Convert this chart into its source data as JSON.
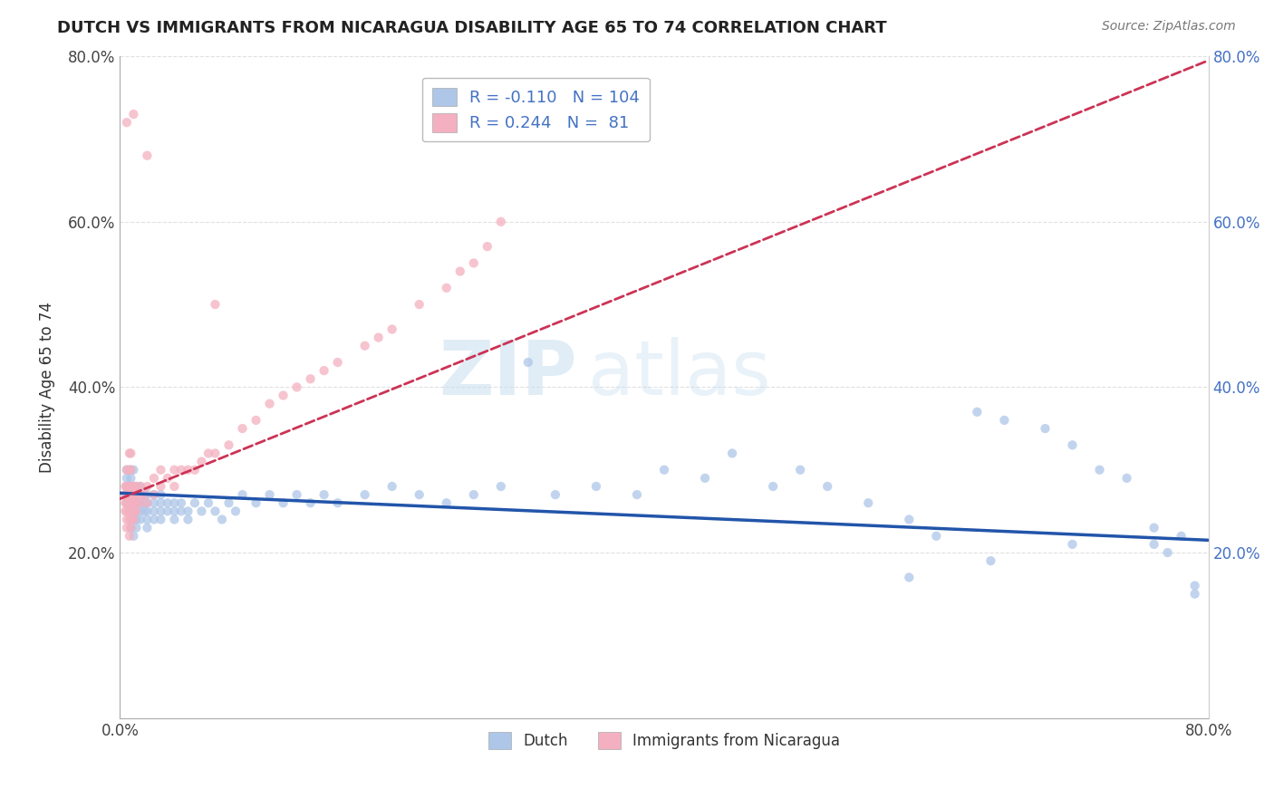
{
  "title": "DUTCH VS IMMIGRANTS FROM NICARAGUA DISABILITY AGE 65 TO 74 CORRELATION CHART",
  "source": "Source: ZipAtlas.com",
  "ylabel": "Disability Age 65 to 74",
  "xmin": 0.0,
  "xmax": 0.8,
  "ymin": 0.0,
  "ymax": 0.8,
  "xtick_positions": [
    0.0,
    0.8
  ],
  "xtick_labels": [
    "0.0%",
    "80.0%"
  ],
  "ytick_positions": [
    0.2,
    0.4,
    0.6,
    0.8
  ],
  "ytick_labels": [
    "20.0%",
    "40.0%",
    "60.0%",
    "80.0%"
  ],
  "dutch_color": "#aec6e8",
  "dutch_line_color": "#2255aa",
  "nicaragua_color": "#f4b0c0",
  "nicaragua_line_color": "#cc3355",
  "dutch_R": -0.11,
  "dutch_N": 104,
  "nicaragua_R": 0.244,
  "nicaragua_N": 81,
  "legend1_label": "Dutch",
  "legend2_label": "Immigrants from Nicaragua",
  "watermark_zip": "ZIP",
  "watermark_atlas": "atlas",
  "dutch_trend_x0": 0.0,
  "dutch_trend_y0": 0.272,
  "dutch_trend_x1": 0.8,
  "dutch_trend_y1": 0.215,
  "nic_trend_x0": 0.0,
  "nic_trend_y0": 0.265,
  "nic_trend_x1": 0.8,
  "nic_trend_y1": 0.795,
  "dutch_scatter_x": [
    0.005,
    0.005,
    0.005,
    0.005,
    0.005,
    0.008,
    0.008,
    0.008,
    0.008,
    0.008,
    0.008,
    0.008,
    0.01,
    0.01,
    0.01,
    0.01,
    0.01,
    0.01,
    0.01,
    0.012,
    0.012,
    0.012,
    0.012,
    0.012,
    0.012,
    0.015,
    0.015,
    0.015,
    0.015,
    0.015,
    0.018,
    0.018,
    0.018,
    0.02,
    0.02,
    0.02,
    0.02,
    0.02,
    0.025,
    0.025,
    0.025,
    0.025,
    0.03,
    0.03,
    0.03,
    0.03,
    0.035,
    0.035,
    0.04,
    0.04,
    0.04,
    0.045,
    0.045,
    0.05,
    0.05,
    0.055,
    0.06,
    0.065,
    0.07,
    0.075,
    0.08,
    0.085,
    0.09,
    0.1,
    0.11,
    0.12,
    0.13,
    0.14,
    0.15,
    0.16,
    0.18,
    0.2,
    0.22,
    0.24,
    0.26,
    0.28,
    0.3,
    0.32,
    0.35,
    0.38,
    0.4,
    0.43,
    0.45,
    0.48,
    0.5,
    0.52,
    0.55,
    0.58,
    0.6,
    0.63,
    0.65,
    0.68,
    0.7,
    0.72,
    0.74,
    0.76,
    0.77,
    0.78,
    0.79,
    0.79,
    0.58,
    0.64,
    0.7,
    0.76
  ],
  "dutch_scatter_y": [
    0.26,
    0.27,
    0.28,
    0.29,
    0.3,
    0.23,
    0.25,
    0.26,
    0.27,
    0.28,
    0.29,
    0.3,
    0.22,
    0.24,
    0.25,
    0.26,
    0.27,
    0.28,
    0.3,
    0.23,
    0.24,
    0.25,
    0.26,
    0.27,
    0.28,
    0.24,
    0.25,
    0.26,
    0.27,
    0.28,
    0.25,
    0.26,
    0.27,
    0.23,
    0.24,
    0.25,
    0.26,
    0.27,
    0.24,
    0.25,
    0.26,
    0.27,
    0.24,
    0.25,
    0.26,
    0.27,
    0.25,
    0.26,
    0.24,
    0.25,
    0.26,
    0.25,
    0.26,
    0.24,
    0.25,
    0.26,
    0.25,
    0.26,
    0.25,
    0.24,
    0.26,
    0.25,
    0.27,
    0.26,
    0.27,
    0.26,
    0.27,
    0.26,
    0.27,
    0.26,
    0.27,
    0.28,
    0.27,
    0.26,
    0.27,
    0.28,
    0.43,
    0.27,
    0.28,
    0.27,
    0.3,
    0.29,
    0.32,
    0.28,
    0.3,
    0.28,
    0.26,
    0.24,
    0.22,
    0.37,
    0.36,
    0.35,
    0.33,
    0.3,
    0.29,
    0.21,
    0.2,
    0.22,
    0.16,
    0.15,
    0.17,
    0.19,
    0.21,
    0.23
  ],
  "nicaragua_scatter_x": [
    0.004,
    0.004,
    0.004,
    0.004,
    0.005,
    0.005,
    0.005,
    0.005,
    0.005,
    0.005,
    0.005,
    0.007,
    0.007,
    0.007,
    0.007,
    0.007,
    0.007,
    0.007,
    0.007,
    0.008,
    0.008,
    0.008,
    0.008,
    0.008,
    0.008,
    0.008,
    0.009,
    0.009,
    0.009,
    0.009,
    0.009,
    0.01,
    0.01,
    0.01,
    0.01,
    0.01,
    0.012,
    0.012,
    0.012,
    0.012,
    0.015,
    0.015,
    0.015,
    0.018,
    0.02,
    0.02,
    0.025,
    0.025,
    0.03,
    0.03,
    0.035,
    0.04,
    0.04,
    0.045,
    0.05,
    0.055,
    0.06,
    0.065,
    0.07,
    0.08,
    0.09,
    0.1,
    0.11,
    0.12,
    0.13,
    0.14,
    0.15,
    0.16,
    0.18,
    0.19,
    0.2,
    0.22,
    0.24,
    0.25,
    0.26,
    0.27,
    0.28,
    0.07,
    0.02,
    0.01,
    0.005
  ],
  "nicaragua_scatter_y": [
    0.25,
    0.26,
    0.27,
    0.28,
    0.23,
    0.24,
    0.25,
    0.26,
    0.27,
    0.28,
    0.3,
    0.22,
    0.24,
    0.25,
    0.26,
    0.27,
    0.28,
    0.3,
    0.32,
    0.23,
    0.25,
    0.26,
    0.27,
    0.28,
    0.3,
    0.32,
    0.24,
    0.25,
    0.26,
    0.27,
    0.28,
    0.24,
    0.25,
    0.26,
    0.27,
    0.28,
    0.25,
    0.26,
    0.27,
    0.28,
    0.26,
    0.27,
    0.28,
    0.27,
    0.26,
    0.28,
    0.27,
    0.29,
    0.28,
    0.3,
    0.29,
    0.28,
    0.3,
    0.3,
    0.3,
    0.3,
    0.31,
    0.32,
    0.32,
    0.33,
    0.35,
    0.36,
    0.38,
    0.39,
    0.4,
    0.41,
    0.42,
    0.43,
    0.45,
    0.46,
    0.47,
    0.5,
    0.52,
    0.54,
    0.55,
    0.57,
    0.6,
    0.5,
    0.68,
    0.73,
    0.72
  ]
}
